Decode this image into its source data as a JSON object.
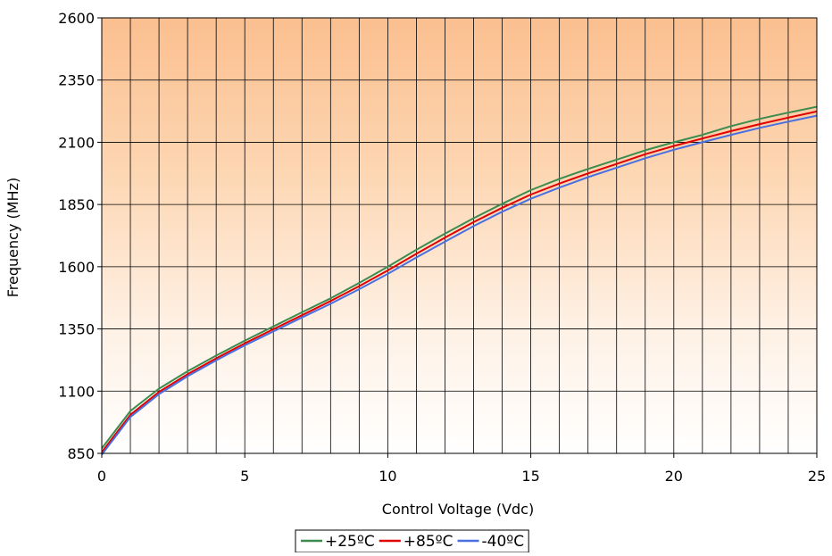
{
  "chart_data": {
    "type": "line",
    "title": "",
    "xlabel": "Control Voltage (Vdc)",
    "ylabel": "Frequency (MHz)",
    "xlim": [
      0,
      25
    ],
    "ylim": [
      850,
      2600
    ],
    "xticks": [
      0,
      5,
      10,
      15,
      20,
      25
    ],
    "yticks": [
      850,
      1100,
      1350,
      1600,
      1850,
      2100,
      2350,
      2600
    ],
    "x_minor_gridline_step": 1,
    "grid": true,
    "legend_position": "bottom-center",
    "background": "gradient-orange-top-to-white-bottom",
    "x": [
      0,
      1,
      2,
      3,
      4,
      5,
      6,
      7,
      8,
      9,
      10,
      11,
      12,
      13,
      14,
      15,
      16,
      17,
      18,
      19,
      20,
      21,
      22,
      23,
      24,
      25
    ],
    "series": [
      {
        "name": "+25ºC",
        "color": "#3c8c50",
        "values": [
          870,
          1020,
          1110,
          1180,
          1243,
          1303,
          1360,
          1417,
          1473,
          1535,
          1600,
          1668,
          1733,
          1795,
          1853,
          1908,
          1953,
          1993,
          2030,
          2068,
          2100,
          2130,
          2165,
          2194,
          2219,
          2243
        ]
      },
      {
        "name": "+85ºC",
        "color": "#e00000",
        "values": [
          855,
          1005,
          1097,
          1168,
          1232,
          1292,
          1349,
          1405,
          1462,
          1522,
          1585,
          1652,
          1717,
          1779,
          1837,
          1890,
          1934,
          1975,
          2013,
          2052,
          2085,
          2115,
          2145,
          2173,
          2199,
          2224
        ]
      },
      {
        "name": "-40ºC",
        "color": "#4a6fe0",
        "values": [
          845,
          996,
          1088,
          1160,
          1224,
          1284,
          1340,
          1396,
          1451,
          1510,
          1571,
          1637,
          1701,
          1763,
          1821,
          1873,
          1918,
          1960,
          1998,
          2036,
          2070,
          2100,
          2130,
          2158,
          2183,
          2207
        ]
      }
    ]
  }
}
